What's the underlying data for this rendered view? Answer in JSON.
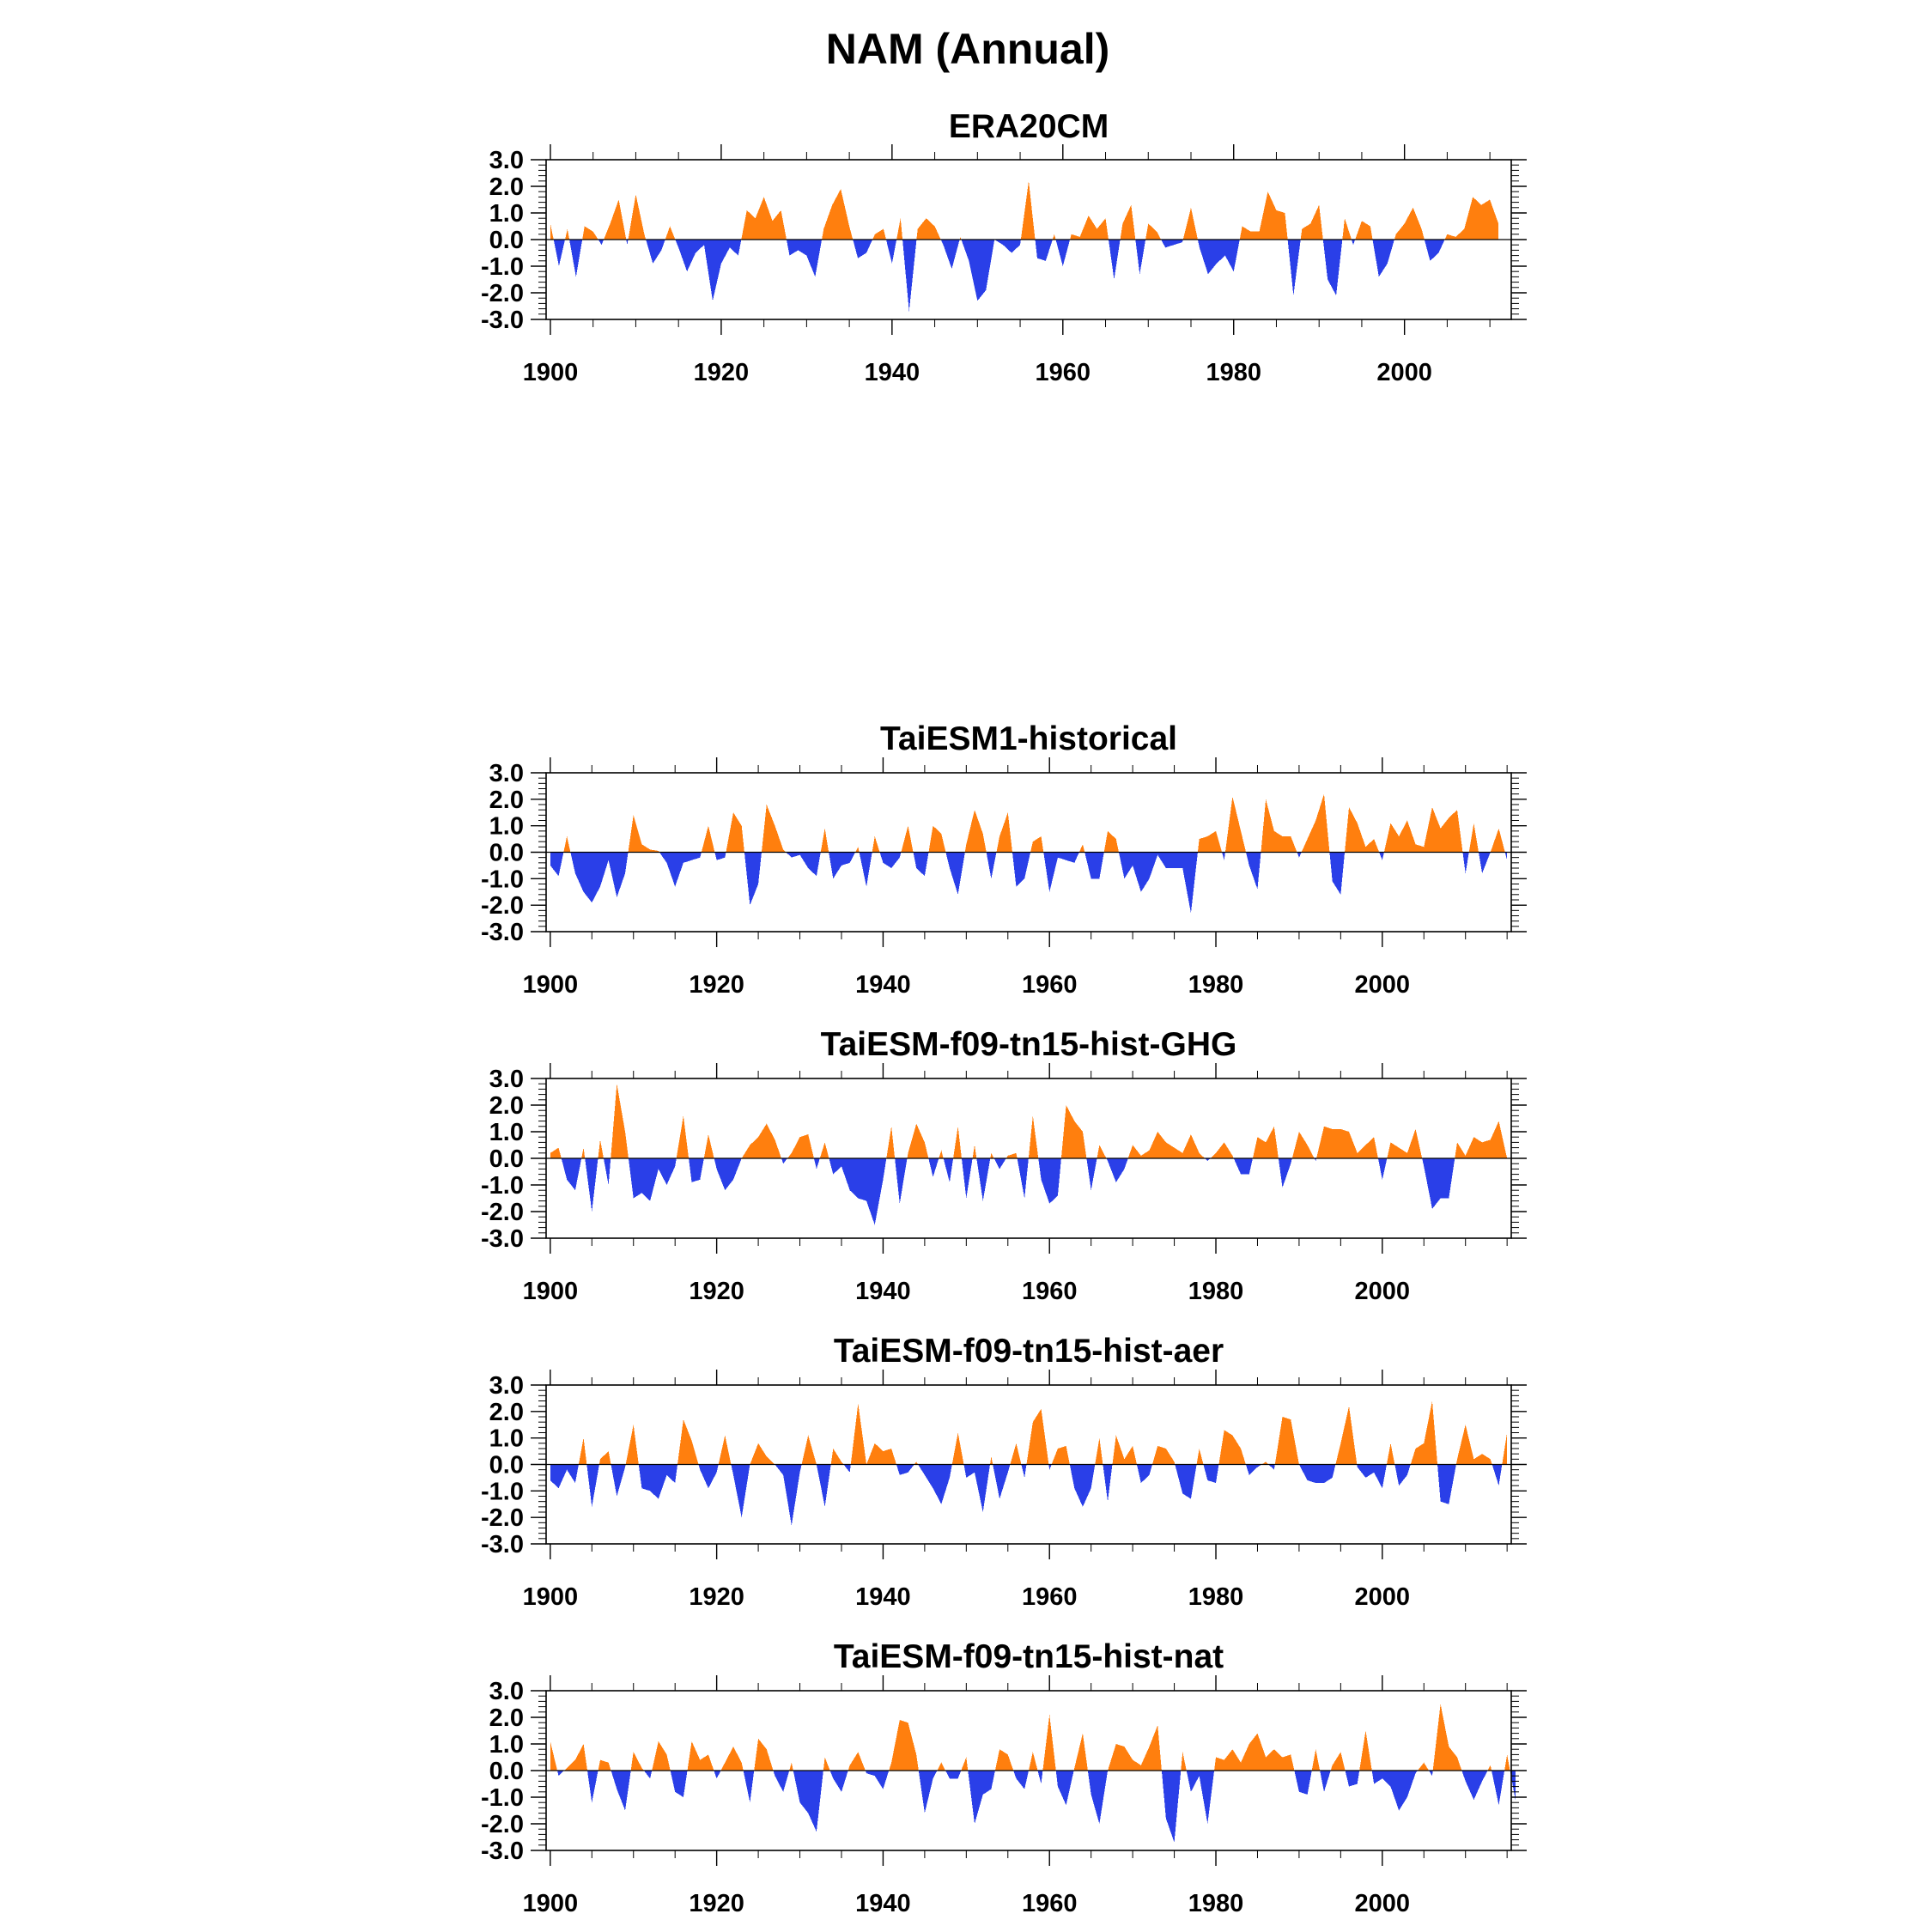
{
  "figure": {
    "title": "NAM (Annual)"
  },
  "colors": {
    "positive": "#ff7f0e",
    "negative": "#2a3fe8",
    "frame": "#000000"
  },
  "chart_data": [
    {
      "type": "area",
      "title": "ERA20CM",
      "start_year": 1900,
      "xlim": [
        1899.5,
        2012.5
      ],
      "ylim": [
        -3.0,
        3.0
      ],
      "xticks": [
        1900,
        1920,
        1940,
        1960,
        1980,
        2000
      ],
      "xtick_labels": [
        "1900",
        "1920",
        "1940",
        "1960",
        "1980",
        "2000"
      ],
      "yticks": [
        3.0,
        2.0,
        1.0,
        0.0,
        -1.0,
        -2.0,
        -3.0
      ],
      "ytick_labels": [
        "3.0",
        "2.0",
        "1.0",
        "0.0",
        "-1.0",
        "-2.0",
        "-3.0"
      ],
      "grid": false,
      "values": [
        0.6,
        -1.0,
        0.4,
        -1.4,
        0.5,
        0.3,
        -0.2,
        0.6,
        1.5,
        -0.2,
        1.7,
        0.2,
        -0.9,
        -0.4,
        0.5,
        -0.3,
        -1.2,
        -0.5,
        -0.2,
        -2.3,
        -0.9,
        -0.3,
        -0.6,
        1.1,
        0.8,
        1.6,
        0.7,
        1.1,
        -0.6,
        -0.4,
        -0.6,
        -1.4,
        0.4,
        1.3,
        1.9,
        0.5,
        -0.7,
        -0.5,
        0.2,
        0.4,
        -0.9,
        0.8,
        -2.7,
        0.4,
        0.8,
        0.5,
        -0.2,
        -1.1,
        0.1,
        -0.8,
        -2.3,
        -1.9,
        0.0,
        -0.2,
        -0.5,
        -0.2,
        2.2,
        -0.7,
        -0.8,
        0.2,
        -1.0,
        0.2,
        0.1,
        0.9,
        0.4,
        0.8,
        -1.5,
        0.6,
        1.3,
        -1.3,
        0.6,
        0.3,
        -0.3,
        -0.2,
        -0.1,
        1.2,
        -0.3,
        -1.3,
        -0.9,
        -0.6,
        -1.2,
        0.5,
        0.3,
        0.3,
        1.8,
        1.1,
        1.0,
        -2.1,
        0.4,
        0.6,
        1.3,
        -1.5,
        -2.1,
        0.8,
        -0.2,
        0.7,
        0.5,
        -1.4,
        -0.9,
        0.2,
        0.6,
        1.2,
        0.4,
        -0.8,
        -0.5,
        0.2,
        0.1,
        0.4,
        1.6,
        1.3,
        1.5,
        0.6
      ]
    },
    {
      "type": "area",
      "title": "TaiESM1-historical",
      "start_year": 1900,
      "xlim": [
        1899.5,
        2015.5
      ],
      "ylim": [
        -3.0,
        3.0
      ],
      "xticks": [
        1900,
        1920,
        1940,
        1960,
        1980,
        2000
      ],
      "xtick_labels": [
        "1900",
        "1920",
        "1940",
        "1960",
        "1980",
        "2000"
      ],
      "yticks": [
        3.0,
        2.0,
        1.0,
        0.0,
        -1.0,
        -2.0,
        -3.0
      ],
      "ytick_labels": [
        "3.0",
        "2.0",
        "1.0",
        "0.0",
        "-1.0",
        "-2.0",
        "-3.0"
      ],
      "grid": false,
      "values": [
        -0.5,
        -0.9,
        0.6,
        -0.8,
        -1.5,
        -1.9,
        -1.3,
        -0.3,
        -1.7,
        -0.8,
        1.4,
        0.3,
        0.1,
        0.05,
        -0.4,
        -1.3,
        -0.4,
        -0.3,
        -0.2,
        1.0,
        -0.3,
        -0.2,
        1.5,
        1.0,
        -2.0,
        -1.2,
        1.8,
        1.0,
        0.1,
        -0.2,
        -0.1,
        -0.6,
        -0.9,
        0.9,
        -1.0,
        -0.5,
        -0.4,
        0.2,
        -1.3,
        0.6,
        -0.4,
        -0.6,
        -0.2,
        1.0,
        -0.6,
        -0.9,
        1.0,
        0.7,
        -0.6,
        -1.6,
        0.3,
        1.6,
        0.7,
        -1.0,
        0.6,
        1.5,
        -1.3,
        -1.0,
        0.4,
        0.6,
        -1.5,
        -0.2,
        -0.3,
        -0.4,
        0.3,
        -1.0,
        -1.0,
        0.8,
        0.5,
        -1.0,
        -0.5,
        -1.5,
        -1.0,
        -0.1,
        -0.6,
        -0.6,
        -0.6,
        -2.3,
        0.5,
        0.6,
        0.8,
        -0.3,
        2.1,
        0.8,
        -0.5,
        -1.4,
        2.0,
        0.8,
        0.6,
        0.6,
        -0.2,
        0.5,
        1.2,
        2.2,
        -1.1,
        -1.6,
        1.7,
        1.1,
        0.2,
        0.5,
        -0.3,
        1.1,
        0.6,
        1.2,
        0.3,
        0.2,
        1.7,
        0.9,
        1.3,
        1.6,
        -0.8,
        1.1,
        -0.8,
        0.0,
        0.9,
        -0.3
      ]
    },
    {
      "type": "area",
      "title": "TaiESM-f09-tn15-hist-GHG",
      "start_year": 1900,
      "xlim": [
        1899.5,
        2015.5
      ],
      "ylim": [
        -3.0,
        3.0
      ],
      "xticks": [
        1900,
        1920,
        1940,
        1960,
        1980,
        2000
      ],
      "xtick_labels": [
        "1900",
        "1920",
        "1940",
        "1960",
        "1980",
        "2000"
      ],
      "yticks": [
        3.0,
        2.0,
        1.0,
        0.0,
        -1.0,
        -2.0,
        -3.0
      ],
      "ytick_labels": [
        "3.0",
        "2.0",
        "1.0",
        "0.0",
        "-1.0",
        "-2.0",
        "-3.0"
      ],
      "grid": false,
      "values": [
        0.2,
        0.4,
        -0.8,
        -1.2,
        0.4,
        -2.0,
        0.7,
        -1.0,
        2.8,
        1.0,
        -1.5,
        -1.3,
        -1.6,
        -0.4,
        -1.0,
        -0.3,
        1.6,
        -0.9,
        -0.8,
        0.9,
        -0.4,
        -1.2,
        -0.8,
        0.0,
        0.5,
        0.8,
        1.3,
        0.7,
        -0.2,
        0.2,
        0.8,
        0.9,
        -0.4,
        0.6,
        -0.6,
        -0.3,
        -1.2,
        -1.5,
        -1.6,
        -2.5,
        -0.8,
        1.2,
        -1.7,
        0.2,
        1.3,
        0.6,
        -0.7,
        0.3,
        -0.9,
        1.2,
        -1.5,
        0.5,
        -1.6,
        0.2,
        -0.4,
        0.1,
        0.2,
        -1.5,
        1.6,
        -0.8,
        -1.7,
        -1.4,
        2.0,
        1.4,
        1.0,
        -1.2,
        0.5,
        -0.1,
        -0.9,
        -0.4,
        0.5,
        0.1,
        0.3,
        1.0,
        0.6,
        0.4,
        0.2,
        0.9,
        0.2,
        -0.1,
        0.2,
        0.6,
        0.1,
        -0.6,
        -0.6,
        0.8,
        0.6,
        1.2,
        -1.1,
        -0.2,
        1.0,
        0.5,
        -0.1,
        1.2,
        1.1,
        1.1,
        1.0,
        0.2,
        0.5,
        0.8,
        -0.8,
        0.6,
        0.4,
        0.2,
        1.1,
        -0.3,
        -1.9,
        -1.5,
        -1.5,
        0.6,
        0.1,
        0.8,
        0.6,
        0.7,
        1.4,
        0.0
      ]
    },
    {
      "type": "area",
      "title": "TaiESM-f09-tn15-hist-aer",
      "start_year": 1900,
      "xlim": [
        1899.5,
        2015.5
      ],
      "ylim": [
        -3.0,
        3.0
      ],
      "xticks": [
        1900,
        1920,
        1940,
        1960,
        1980,
        2000
      ],
      "xtick_labels": [
        "1900",
        "1920",
        "1940",
        "1960",
        "1980",
        "2000"
      ],
      "yticks": [
        3.0,
        2.0,
        1.0,
        0.0,
        -1.0,
        -2.0,
        -3.0
      ],
      "ytick_labels": [
        "3.0",
        "2.0",
        "1.0",
        "0.0",
        "-1.0",
        "-2.0",
        "-3.0"
      ],
      "grid": false,
      "values": [
        -0.6,
        -0.9,
        -0.2,
        -0.7,
        1.0,
        -1.6,
        0.2,
        0.5,
        -1.2,
        -0.1,
        1.5,
        -0.9,
        -1.0,
        -1.3,
        -0.4,
        -0.7,
        1.7,
        0.9,
        -0.2,
        -0.9,
        -0.3,
        1.1,
        -0.4,
        -2.0,
        0.0,
        0.8,
        0.3,
        0.0,
        -0.4,
        -2.3,
        -0.3,
        1.1,
        0.0,
        -1.6,
        0.6,
        0.1,
        -0.3,
        2.3,
        0.0,
        0.8,
        0.5,
        0.6,
        -0.4,
        -0.3,
        0.1,
        -0.4,
        -0.9,
        -1.5,
        -0.5,
        1.2,
        -0.5,
        -0.3,
        -1.8,
        0.3,
        -1.3,
        -0.3,
        0.8,
        -0.5,
        1.6,
        2.1,
        -0.2,
        0.6,
        0.7,
        -0.9,
        -1.6,
        -0.9,
        1.0,
        -1.4,
        1.1,
        0.2,
        0.7,
        -0.7,
        -0.4,
        0.7,
        0.6,
        0.1,
        -1.1,
        -1.3,
        0.6,
        -0.6,
        -0.7,
        1.3,
        1.1,
        0.6,
        -0.4,
        -0.1,
        0.1,
        -0.2,
        1.8,
        1.7,
        0.0,
        -0.6,
        -0.7,
        -0.7,
        -0.5,
        0.8,
        2.2,
        -0.1,
        -0.5,
        -0.3,
        -0.9,
        0.8,
        -0.8,
        -0.4,
        0.6,
        0.8,
        2.4,
        -1.4,
        -1.5,
        0.2,
        1.5,
        0.2,
        0.4,
        0.2,
        -0.8,
        1.2
      ]
    },
    {
      "type": "area",
      "title": "TaiESM-f09-tn15-hist-nat",
      "start_year": 1900,
      "xlim": [
        1899.5,
        2015.5
      ],
      "ylim": [
        -3.0,
        3.0
      ],
      "xticks": [
        1900,
        1920,
        1940,
        1960,
        1980,
        2000
      ],
      "xtick_labels": [
        "1900",
        "1920",
        "1940",
        "1960",
        "1980",
        "2000"
      ],
      "yticks": [
        3.0,
        2.0,
        1.0,
        0.0,
        -1.0,
        -2.0,
        -3.0
      ],
      "ytick_labels": [
        "3.0",
        "2.0",
        "1.0",
        "0.0",
        "-1.0",
        "-2.0",
        "-3.0"
      ],
      "grid": false,
      "values": [
        1.1,
        -0.2,
        0.1,
        0.4,
        1.0,
        -1.2,
        0.4,
        0.3,
        -0.7,
        -1.5,
        0.7,
        0.1,
        -0.3,
        1.1,
        0.6,
        -0.8,
        -1.0,
        1.1,
        0.4,
        0.6,
        -0.3,
        0.3,
        0.9,
        0.3,
        -1.2,
        1.2,
        0.8,
        -0.2,
        -0.8,
        0.3,
        -1.2,
        -1.6,
        -2.3,
        0.5,
        -0.3,
        -0.8,
        0.2,
        0.7,
        -0.1,
        -0.2,
        -0.7,
        0.3,
        1.9,
        1.8,
        0.6,
        -1.6,
        -0.3,
        0.3,
        -0.3,
        -0.3,
        0.5,
        -2.0,
        -0.9,
        -0.7,
        0.8,
        0.6,
        -0.3,
        -0.7,
        0.7,
        -0.5,
        2.1,
        -0.6,
        -1.3,
        0.1,
        1.4,
        -0.9,
        -2.0,
        0.0,
        1.0,
        0.9,
        0.4,
        0.2,
        0.9,
        1.7,
        -1.8,
        -2.7,
        0.7,
        -0.8,
        -0.2,
        -2.0,
        0.5,
        0.4,
        0.8,
        0.3,
        1.0,
        1.4,
        0.5,
        0.8,
        0.5,
        0.6,
        -0.8,
        -0.9,
        0.8,
        -0.8,
        0.2,
        0.7,
        -0.6,
        -0.5,
        1.5,
        -0.5,
        -0.3,
        -0.6,
        -1.5,
        -1.0,
        -0.1,
        0.3,
        -0.2,
        2.5,
        0.9,
        0.5,
        -0.4,
        -1.1,
        -0.4,
        0.2,
        -1.3,
        0.6,
        -1.1
      ]
    }
  ]
}
